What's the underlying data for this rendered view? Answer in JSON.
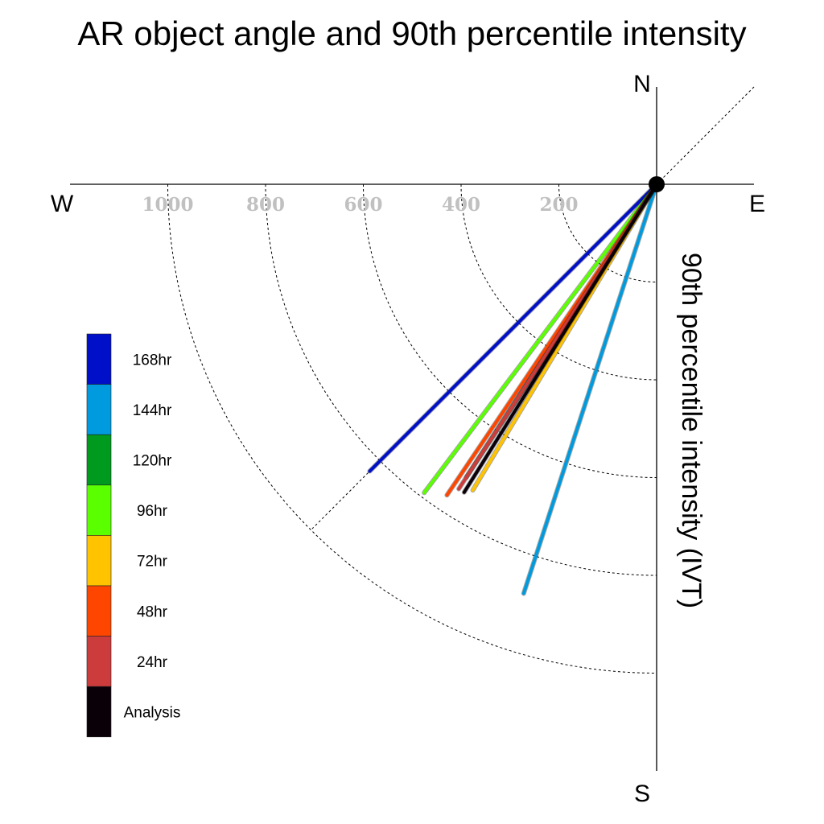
{
  "chart_data": {
    "type": "polar-vector",
    "title": "AR object angle and 90th percentile intensity",
    "ylabel": "90th percentile intensity (IVT)",
    "compass": {
      "north": "N",
      "south": "S",
      "east": "E",
      "west": "W"
    },
    "radial_ticks": [
      200,
      400,
      600,
      800,
      1000
    ],
    "radial_tick_labels": [
      "200",
      "400",
      "600",
      "800",
      "1000"
    ],
    "rmax": 1200,
    "grid": true,
    "legend_position": "left",
    "series": [
      {
        "name": "168hr",
        "color": "#0010C8",
        "angle_deg": 225,
        "intensity": 830
      },
      {
        "name": "144hr",
        "color": "#009BDE",
        "angle_deg": 198,
        "intensity": 880
      },
      {
        "name": "120hr",
        "color": "#009A1E",
        "angle_deg": 213,
        "intensity": 715
      },
      {
        "name": "96hr",
        "color": "#5AFF00",
        "angle_deg": 217,
        "intensity": 790
      },
      {
        "name": "72hr",
        "color": "#FFC300",
        "angle_deg": 211,
        "intensity": 730
      },
      {
        "name": "48hr",
        "color": "#FF4600",
        "angle_deg": 214,
        "intensity": 767
      },
      {
        "name": "24hr",
        "color": "#CD3C3C",
        "angle_deg": 213,
        "intensity": 743
      },
      {
        "name": "Analysis",
        "color": "#0A0008",
        "angle_deg": 212,
        "intensity": 743
      }
    ],
    "legend_order": [
      "168hr",
      "144hr",
      "120hr",
      "96hr",
      "72hr",
      "48hr",
      "24hr",
      "Analysis"
    ]
  }
}
